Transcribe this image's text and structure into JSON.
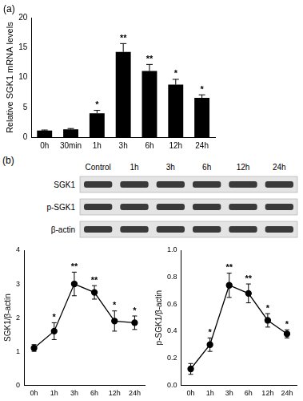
{
  "chart_data": [
    {
      "type": "bar",
      "title": "(a)",
      "categories": [
        "0h",
        "30min",
        "1h",
        "3h",
        "6h",
        "12h",
        "24h"
      ],
      "values": [
        1.1,
        1.3,
        4.0,
        14.3,
        11.1,
        8.8,
        6.6
      ],
      "errors": [
        0.1,
        0.15,
        0.5,
        1.4,
        1.1,
        0.9,
        0.5
      ],
      "significance": [
        null,
        null,
        "*",
        "**",
        "**",
        "*",
        "*"
      ],
      "y_label": "Relative SGK1 mRNA levels",
      "color": "#000000",
      "ylim": [
        0,
        20
      ],
      "yticks": [
        0,
        5,
        10,
        15,
        20
      ],
      "grid": false
    },
    {
      "type": "line",
      "categories": [
        "0h",
        "1h",
        "3h",
        "6h",
        "12h",
        "24h"
      ],
      "values": [
        1.1,
        1.6,
        3.0,
        2.75,
        1.9,
        1.85
      ],
      "errors": [
        0.1,
        0.25,
        0.35,
        0.2,
        0.3,
        0.2
      ],
      "significance": [
        null,
        "*",
        "**",
        "**",
        "*",
        "*"
      ],
      "y_label": "SGK1/β-actin",
      "color": "#000000",
      "marker": "circle",
      "ylim": [
        0,
        4
      ],
      "yticks": [
        0,
        1,
        2,
        3,
        4
      ],
      "grid": false
    },
    {
      "type": "line",
      "categories": [
        "0h",
        "1h",
        "3h",
        "6h",
        "12h",
        "24h"
      ],
      "values": [
        0.12,
        0.3,
        0.74,
        0.68,
        0.48,
        0.38
      ],
      "errors": [
        0.04,
        0.05,
        0.09,
        0.07,
        0.05,
        0.03
      ],
      "significance": [
        null,
        "*",
        "**",
        "**",
        "*",
        "*"
      ],
      "y_label": "p-SGK1/β-actin",
      "color": "#000000",
      "marker": "circle",
      "ylim": [
        0,
        1
      ],
      "yticks": [
        {
          "value": 0,
          "label": "0.0"
        },
        0.2,
        0.4,
        0.6,
        0.8,
        {
          "value": 1,
          "label": "1.0"
        }
      ],
      "grid": false
    }
  ],
  "blot": {
    "label": "(b)",
    "lanes": [
      "Control",
      "1h",
      "3h",
      "6h",
      "12h",
      "24h"
    ],
    "rows": [
      "SGK1",
      "p-SGK1",
      "β-actin"
    ]
  }
}
